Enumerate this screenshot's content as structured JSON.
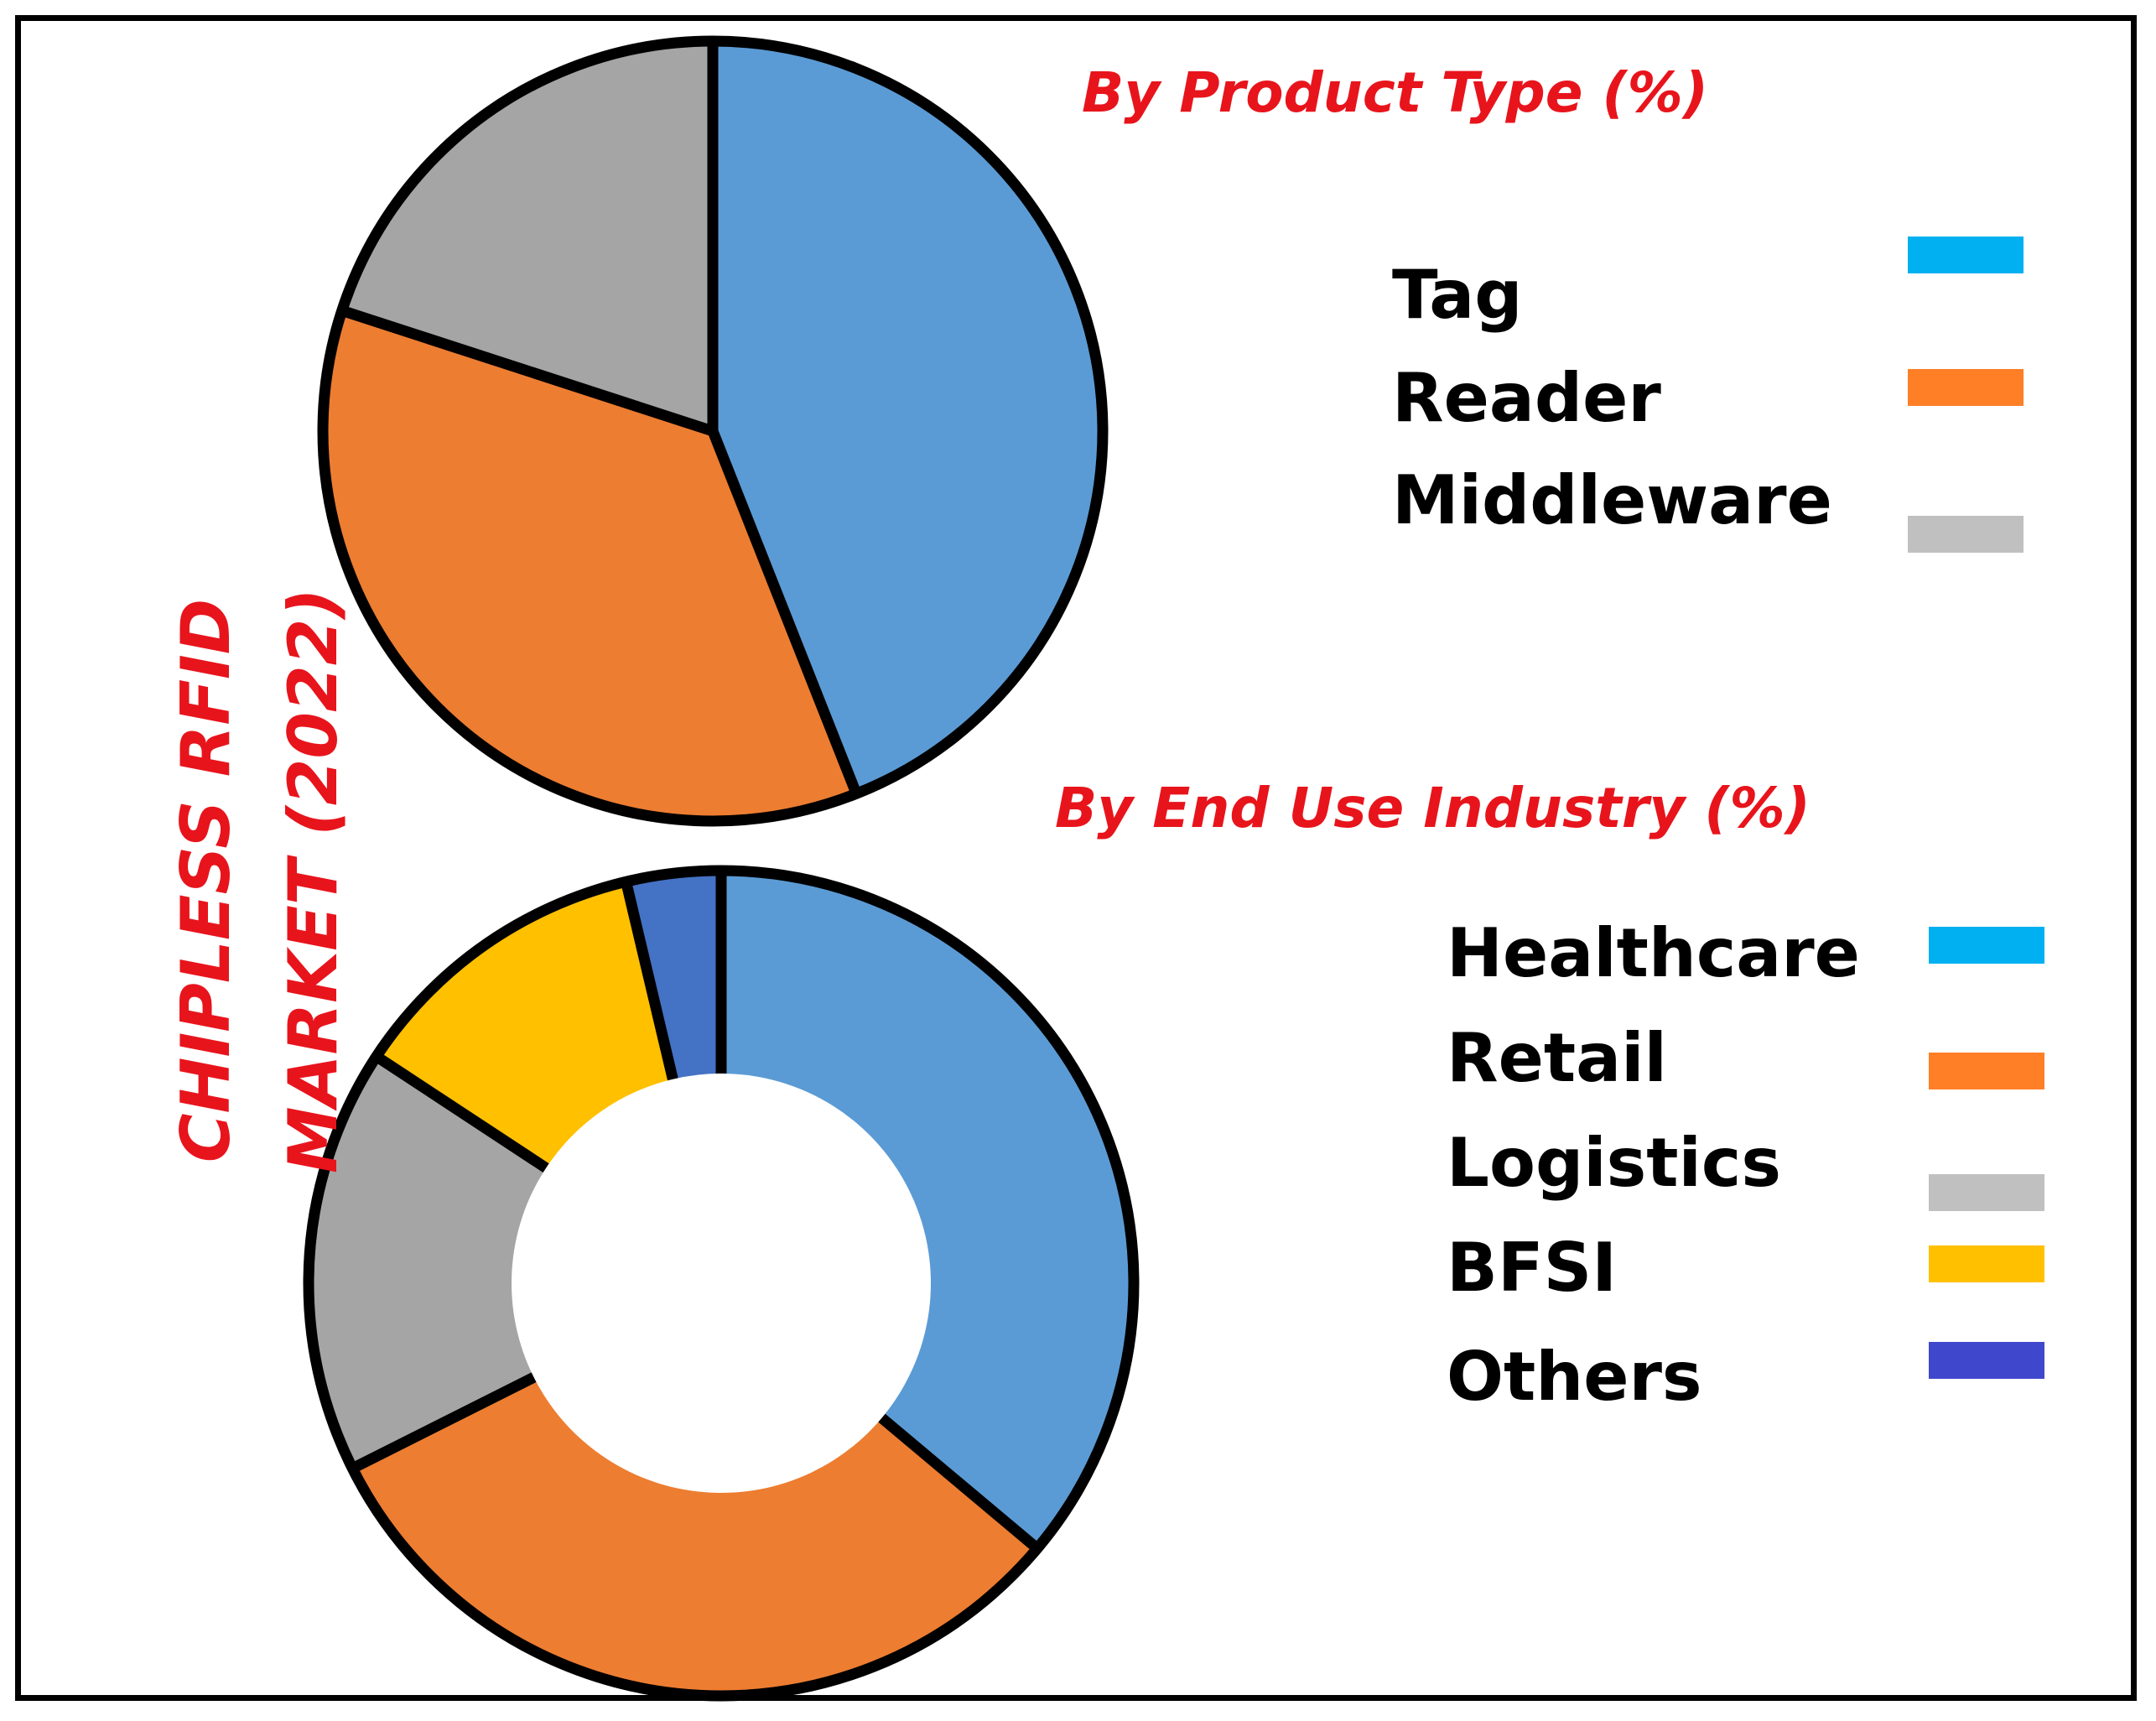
{
  "side_title": {
    "line1": "CHIPLESS RFID",
    "line2": "MARKET (2022)"
  },
  "chart_data": [
    {
      "type": "pie",
      "title": "By Product Type (%)",
      "categories": [
        "Tag",
        "Reader",
        "Middleware"
      ],
      "values": [
        44,
        36,
        20
      ],
      "colors": [
        "#5b9bd5",
        "#ed7d31",
        "#a5a5a5"
      ],
      "legend_colors": [
        "#00b0f0",
        "#ff7f27",
        "#c0c0c0"
      ],
      "legend": "right"
    },
    {
      "type": "pie",
      "subtype": "donut",
      "title": "By End Use Industry (%)",
      "categories": [
        "Healthcare",
        "Retail",
        "Logistics",
        "BFSI",
        "Others"
      ],
      "values": [
        39,
        34,
        18,
        13,
        4
      ],
      "colors": [
        "#5b9bd5",
        "#ed7d31",
        "#a5a5a5",
        "#ffc000",
        "#4472c4"
      ],
      "legend_colors": [
        "#00b0f0",
        "#ff7f27",
        "#c0c0c0",
        "#ffc000",
        "#3f48cc"
      ],
      "legend": "right"
    }
  ]
}
